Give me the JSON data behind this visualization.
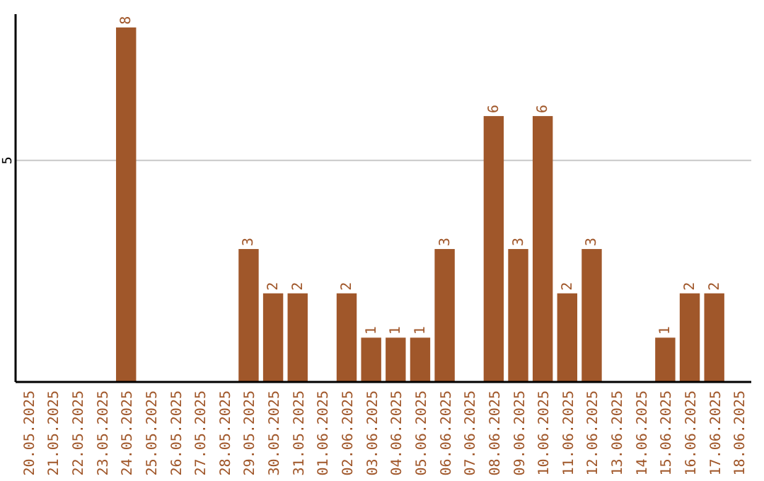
{
  "chart_data": {
    "type": "bar",
    "categories": [
      "20.05.2025",
      "21.05.2025",
      "22.05.2025",
      "23.05.2025",
      "24.05.2025",
      "25.05.2025",
      "26.05.2025",
      "27.05.2025",
      "28.05.2025",
      "29.05.2025",
      "30.05.2025",
      "31.05.2025",
      "01.06.2025",
      "02.06.2025",
      "03.06.2025",
      "04.06.2025",
      "05.06.2025",
      "06.06.2025",
      "07.06.2025",
      "08.06.2025",
      "09.06.2025",
      "10.06.2025",
      "11.06.2025",
      "12.06.2025",
      "13.06.2025",
      "14.06.2025",
      "15.06.2025",
      "16.06.2025",
      "17.06.2025",
      "18.06.2025"
    ],
    "values": [
      null,
      null,
      null,
      null,
      8,
      null,
      null,
      null,
      null,
      3,
      2,
      2,
      null,
      2,
      1,
      1,
      1,
      3,
      null,
      6,
      3,
      6,
      2,
      3,
      null,
      null,
      1,
      2,
      2,
      null
    ],
    "color": "#a0572a",
    "ylim": [
      0,
      8.3
    ],
    "yticks": [
      5
    ],
    "grid": "y",
    "data_labels": true
  }
}
